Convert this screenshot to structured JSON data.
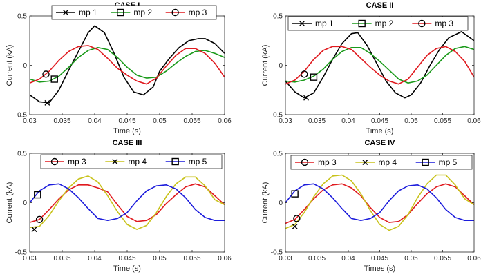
{
  "chart_data": [
    {
      "type": "line",
      "title": "CASE I",
      "xlabel": "Time (s)",
      "ylabel": "Current (kA)",
      "xlim": [
        0.03,
        0.06
      ],
      "ylim": [
        -0.5,
        0.5
      ],
      "xticks": [
        "0.03",
        "0.035",
        "0.04",
        "0.045",
        "0.05",
        "0.055",
        "0.06"
      ],
      "yticks": [
        "-0.5",
        "0",
        "0.5"
      ],
      "grid": false,
      "legend": "top, horizontal",
      "series": [
        {
          "name": "mp 1",
          "color": "#000000",
          "marker": "x",
          "marker_point": [
            0.0327,
            -0.38
          ],
          "x": [
            0.03,
            0.0315,
            0.033,
            0.0345,
            0.036,
            0.0375,
            0.039,
            0.04,
            0.0415,
            0.043,
            0.0445,
            0.046,
            0.0475,
            0.049,
            0.05,
            0.0515,
            0.053,
            0.0545,
            0.056,
            0.057,
            0.0585,
            0.06
          ],
          "y": [
            -0.3,
            -0.37,
            -0.38,
            -0.25,
            -0.05,
            0.14,
            0.33,
            0.4,
            0.33,
            0.12,
            -0.12,
            -0.27,
            -0.3,
            -0.22,
            -0.06,
            0.07,
            0.18,
            0.25,
            0.27,
            0.27,
            0.22,
            0.12
          ]
        },
        {
          "name": "mp 2",
          "color": "#1a9a1a",
          "marker": "square",
          "marker_point": [
            0.0338,
            -0.14
          ],
          "x": [
            0.03,
            0.0315,
            0.033,
            0.0345,
            0.036,
            0.0375,
            0.039,
            0.0405,
            0.042,
            0.0435,
            0.045,
            0.0465,
            0.048,
            0.0495,
            0.051,
            0.0525,
            0.054,
            0.0555,
            0.057,
            0.0585,
            0.06
          ],
          "y": [
            -0.14,
            -0.17,
            -0.16,
            -0.11,
            -0.02,
            0.08,
            0.15,
            0.18,
            0.16,
            0.08,
            -0.02,
            -0.1,
            -0.13,
            -0.12,
            -0.06,
            0.02,
            0.09,
            0.14,
            0.15,
            0.12,
            0.08
          ]
        },
        {
          "name": "mp 3",
          "color": "#e0191e",
          "marker": "circle",
          "marker_point": [
            0.0325,
            -0.09
          ],
          "x": [
            0.03,
            0.0315,
            0.033,
            0.0345,
            0.036,
            0.0375,
            0.039,
            0.0405,
            0.042,
            0.0435,
            0.045,
            0.0465,
            0.048,
            0.0495,
            0.051,
            0.0525,
            0.054,
            0.0555,
            0.057,
            0.0585,
            0.06
          ],
          "y": [
            -0.18,
            -0.14,
            -0.06,
            0.05,
            0.14,
            0.19,
            0.2,
            0.16,
            0.07,
            -0.03,
            -0.1,
            -0.16,
            -0.19,
            -0.13,
            -0.01,
            0.1,
            0.17,
            0.17,
            0.12,
            0.02,
            -0.12
          ]
        }
      ]
    },
    {
      "type": "line",
      "title": "CASE II",
      "xlabel": "Time (s)",
      "ylabel": "Current (kA)",
      "xlim": [
        0.03,
        0.06
      ],
      "ylim": [
        -0.5,
        0.5
      ],
      "xticks": [
        "0.03",
        "0.035",
        "0.04",
        "0.045",
        "0.05",
        "0.055",
        "0.06"
      ],
      "yticks": [
        "-0.5",
        "0",
        "0.5"
      ],
      "grid": false,
      "legend": "top, horizontal",
      "series": [
        {
          "name": "mp 1",
          "color": "#000000",
          "marker": "x",
          "marker_point": [
            0.0333,
            -0.33
          ],
          "x": [
            0.03,
            0.0315,
            0.033,
            0.0345,
            0.036,
            0.0375,
            0.039,
            0.0405,
            0.0415,
            0.043,
            0.0445,
            0.046,
            0.0475,
            0.049,
            0.05,
            0.0515,
            0.053,
            0.0545,
            0.056,
            0.058,
            0.06
          ],
          "y": [
            -0.16,
            -0.27,
            -0.33,
            -0.28,
            -0.12,
            0.06,
            0.22,
            0.32,
            0.33,
            0.2,
            0.02,
            -0.16,
            -0.28,
            -0.33,
            -0.3,
            -0.18,
            0.0,
            0.16,
            0.28,
            0.34,
            0.25
          ]
        },
        {
          "name": "mp 2",
          "color": "#1a9a1a",
          "marker": "square",
          "marker_point": [
            0.0345,
            -0.12
          ],
          "x": [
            0.03,
            0.0315,
            0.033,
            0.0345,
            0.036,
            0.0375,
            0.039,
            0.0405,
            0.042,
            0.0435,
            0.045,
            0.0465,
            0.048,
            0.0495,
            0.051,
            0.0525,
            0.054,
            0.0555,
            0.057,
            0.0585,
            0.06
          ],
          "y": [
            -0.16,
            -0.17,
            -0.15,
            -0.11,
            -0.04,
            0.06,
            0.14,
            0.18,
            0.18,
            0.12,
            0.04,
            -0.05,
            -0.14,
            -0.18,
            -0.16,
            -0.1,
            0.0,
            0.1,
            0.17,
            0.19,
            0.16
          ]
        },
        {
          "name": "mp 3",
          "color": "#e0191e",
          "marker": "circle",
          "marker_point": [
            0.033,
            -0.09
          ],
          "x": [
            0.03,
            0.0315,
            0.033,
            0.0345,
            0.036,
            0.0375,
            0.039,
            0.0405,
            0.042,
            0.0435,
            0.045,
            0.0465,
            0.048,
            0.0495,
            0.051,
            0.0525,
            0.054,
            0.0555,
            0.057,
            0.0585,
            0.06
          ],
          "y": [
            -0.19,
            -0.15,
            -0.06,
            0.06,
            0.15,
            0.19,
            0.19,
            0.16,
            0.07,
            -0.02,
            -0.1,
            -0.16,
            -0.19,
            -0.14,
            -0.02,
            0.1,
            0.17,
            0.19,
            0.14,
            0.04,
            -0.12
          ]
        }
      ]
    },
    {
      "type": "line",
      "title": "CASE III",
      "xlabel": "Time (s)",
      "ylabel": "Current (kA)",
      "xlim": [
        0.03,
        0.06
      ],
      "ylim": [
        -0.5,
        0.5
      ],
      "xticks": [
        "0.03",
        "0.035",
        "0.04",
        "0.045",
        "0.05",
        "0.055",
        "0.06"
      ],
      "yticks": [
        "-0.5",
        "0",
        "0.5"
      ],
      "grid": false,
      "legend": "top, horizontal",
      "series": [
        {
          "name": "mp 3",
          "color": "#e0191e",
          "marker": "circle",
          "marker_point": [
            0.0315,
            -0.17
          ],
          "x": [
            0.03,
            0.0315,
            0.033,
            0.0345,
            0.036,
            0.0375,
            0.039,
            0.0405,
            0.042,
            0.0435,
            0.045,
            0.0465,
            0.048,
            0.0495,
            0.051,
            0.0525,
            0.054,
            0.0555,
            0.057,
            0.0585,
            0.06
          ],
          "y": [
            -0.2,
            -0.17,
            -0.07,
            0.04,
            0.13,
            0.18,
            0.18,
            0.15,
            0.11,
            -0.02,
            -0.14,
            -0.19,
            -0.18,
            -0.12,
            -0.01,
            0.08,
            0.16,
            0.19,
            0.16,
            0.07,
            -0.02
          ]
        },
        {
          "name": "mp 4",
          "color": "#c8c21a",
          "marker": "x",
          "marker_point": [
            0.0307,
            -0.27
          ],
          "x": [
            0.03,
            0.0315,
            0.033,
            0.0345,
            0.036,
            0.0375,
            0.039,
            0.0405,
            0.042,
            0.0435,
            0.045,
            0.0465,
            0.048,
            0.0495,
            0.051,
            0.0525,
            0.054,
            0.0555,
            0.057,
            0.0585,
            0.06
          ],
          "y": [
            -0.25,
            -0.24,
            -0.13,
            0.02,
            0.15,
            0.24,
            0.27,
            0.21,
            0.07,
            -0.09,
            -0.22,
            -0.27,
            -0.23,
            -0.1,
            0.06,
            0.19,
            0.26,
            0.26,
            0.17,
            0.03,
            -0.02
          ]
        },
        {
          "name": "mp 5",
          "color": "#1c1cdc",
          "marker": "square",
          "marker_point": [
            0.0312,
            0.08
          ],
          "x": [
            0.03,
            0.0315,
            0.033,
            0.0345,
            0.036,
            0.0375,
            0.039,
            0.0405,
            0.042,
            0.0435,
            0.045,
            0.0465,
            0.048,
            0.0495,
            0.051,
            0.0525,
            0.054,
            0.0555,
            0.057,
            0.0585,
            0.06
          ],
          "y": [
            0.0,
            0.12,
            0.18,
            0.19,
            0.14,
            0.05,
            -0.06,
            -0.16,
            -0.18,
            -0.16,
            -0.1,
            0.02,
            0.12,
            0.17,
            0.18,
            0.14,
            0.05,
            -0.07,
            -0.15,
            -0.18,
            -0.18
          ]
        }
      ]
    },
    {
      "type": "line",
      "title": "CASE IV",
      "xlabel": "Times (s)",
      "ylabel": "Current (kA)",
      "xlim": [
        0.03,
        0.06
      ],
      "ylim": [
        -0.5,
        0.5
      ],
      "xticks": [
        "0.03",
        "0.035",
        "0.04",
        "0.045",
        "0.05",
        "0.055",
        "0.06"
      ],
      "yticks": [
        "-0.5",
        "0",
        "0.5"
      ],
      "grid": false,
      "legend": "top, horizontal",
      "series": [
        {
          "name": "mp 3",
          "color": "#e0191e",
          "marker": "circle",
          "marker_point": [
            0.0318,
            -0.16
          ],
          "x": [
            0.03,
            0.0315,
            0.033,
            0.0345,
            0.036,
            0.0375,
            0.039,
            0.0405,
            0.042,
            0.0435,
            0.045,
            0.0465,
            0.048,
            0.0495,
            0.051,
            0.0525,
            0.054,
            0.0555,
            0.057,
            0.0585,
            0.06
          ],
          "y": [
            -0.21,
            -0.17,
            -0.07,
            0.04,
            0.13,
            0.18,
            0.19,
            0.15,
            0.07,
            -0.05,
            -0.15,
            -0.2,
            -0.19,
            -0.12,
            -0.01,
            0.09,
            0.16,
            0.19,
            0.16,
            0.07,
            -0.02
          ]
        },
        {
          "name": "mp 4",
          "color": "#c8c21a",
          "marker": "x",
          "marker_point": [
            0.0315,
            -0.24
          ],
          "x": [
            0.03,
            0.0315,
            0.033,
            0.0345,
            0.036,
            0.0375,
            0.039,
            0.0405,
            0.042,
            0.0435,
            0.045,
            0.0465,
            0.048,
            0.0495,
            0.051,
            0.0525,
            0.054,
            0.0555,
            0.057,
            0.0585,
            0.06
          ],
          "y": [
            -0.26,
            -0.22,
            -0.1,
            0.06,
            0.19,
            0.27,
            0.28,
            0.22,
            0.09,
            -0.08,
            -0.22,
            -0.28,
            -0.24,
            -0.12,
            0.05,
            0.19,
            0.28,
            0.28,
            0.18,
            0.04,
            -0.02
          ]
        },
        {
          "name": "mp 5",
          "color": "#1c1cdc",
          "marker": "square",
          "marker_point": [
            0.0315,
            0.09
          ],
          "x": [
            0.03,
            0.0315,
            0.033,
            0.0345,
            0.036,
            0.0375,
            0.039,
            0.0405,
            0.042,
            0.0435,
            0.045,
            0.0465,
            0.048,
            0.0495,
            0.051,
            0.0525,
            0.054,
            0.0555,
            0.057,
            0.0585,
            0.06
          ],
          "y": [
            0.0,
            0.12,
            0.18,
            0.19,
            0.14,
            0.05,
            -0.06,
            -0.16,
            -0.18,
            -0.16,
            -0.1,
            0.02,
            0.12,
            0.17,
            0.18,
            0.14,
            0.05,
            -0.07,
            -0.15,
            -0.18,
            -0.18
          ]
        }
      ]
    }
  ]
}
